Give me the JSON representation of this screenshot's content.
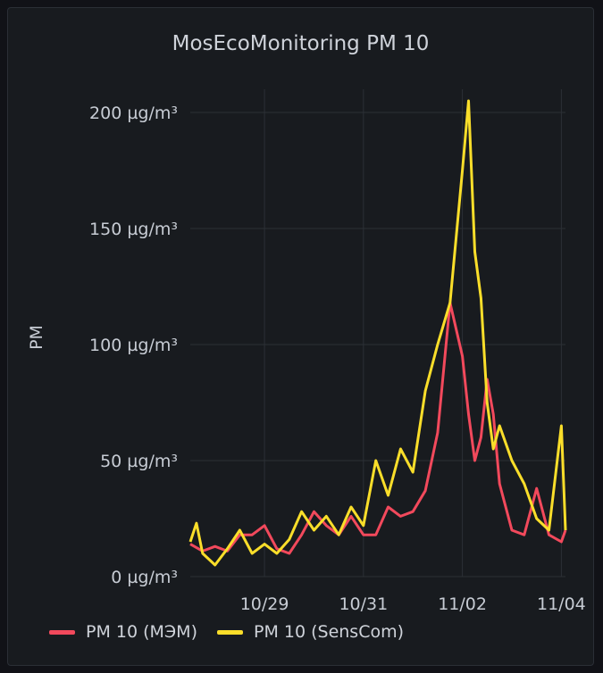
{
  "panel": {
    "title": "MosEcoMonitoring PM 10"
  },
  "legend": {
    "items": [
      {
        "label": "PM 10 (МЭМ)",
        "color": "#f2495c"
      },
      {
        "label": "PM 10 (SensCom)",
        "color": "#fade2a"
      }
    ]
  },
  "chart_data": {
    "type": "line",
    "title": "MosEcoMonitoring PM 10",
    "xlabel": "",
    "ylabel": "PM",
    "x_ticks": [
      "10/29",
      "10/31",
      "11/02",
      "11/04"
    ],
    "y_ticks": [
      "0 µg/m³",
      "50 µg/m³",
      "100 µg/m³",
      "150 µg/m³",
      "200 µg/m³"
    ],
    "ylim": [
      0,
      210
    ],
    "xlim": [
      "10/27 12:00",
      "11/04 02:00"
    ],
    "grid": true,
    "legend_position": "bottom-left",
    "series": [
      {
        "name": "PM 10 (МЭМ)",
        "color": "#f2495c",
        "x": [
          "10/27 12:00",
          "10/27 18:00",
          "10/28 00:00",
          "10/28 06:00",
          "10/28 12:00",
          "10/28 18:00",
          "10/29 00:00",
          "10/29 06:00",
          "10/29 12:00",
          "10/29 18:00",
          "10/30 00:00",
          "10/30 06:00",
          "10/30 12:00",
          "10/30 18:00",
          "10/31 00:00",
          "10/31 06:00",
          "10/31 12:00",
          "10/31 18:00",
          "11/01 00:00",
          "11/01 06:00",
          "11/01 12:00",
          "11/01 18:00",
          "11/02 00:00",
          "11/02 03:00",
          "11/02 06:00",
          "11/02 09:00",
          "11/02 12:00",
          "11/02 15:00",
          "11/02 18:00",
          "11/03 00:00",
          "11/03 06:00",
          "11/03 12:00",
          "11/03 18:00",
          "11/04 00:00",
          "11/04 02:00"
        ],
        "values": [
          14,
          11,
          13,
          11,
          18,
          18,
          22,
          12,
          10,
          18,
          28,
          22,
          18,
          26,
          18,
          18,
          30,
          26,
          28,
          37,
          62,
          118,
          95,
          70,
          50,
          60,
          85,
          70,
          40,
          20,
          18,
          38,
          18,
          15,
          20
        ]
      },
      {
        "name": "PM 10 (SensCom)",
        "color": "#fade2a",
        "x": [
          "10/27 12:00",
          "10/27 15:00",
          "10/27 18:00",
          "10/28 00:00",
          "10/28 06:00",
          "10/28 12:00",
          "10/28 18:00",
          "10/29 00:00",
          "10/29 06:00",
          "10/29 12:00",
          "10/29 18:00",
          "10/30 00:00",
          "10/30 06:00",
          "10/30 12:00",
          "10/30 18:00",
          "10/31 00:00",
          "10/31 06:00",
          "10/31 12:00",
          "10/31 18:00",
          "11/01 00:00",
          "11/01 06:00",
          "11/01 12:00",
          "11/01 18:00",
          "11/02 00:00",
          "11/02 03:00",
          "11/02 06:00",
          "11/02 09:00",
          "11/02 12:00",
          "11/02 15:00",
          "11/02 18:00",
          "11/03 00:00",
          "11/03 06:00",
          "11/03 12:00",
          "11/03 18:00",
          "11/04 00:00",
          "11/04 02:00"
        ],
        "values": [
          15,
          23,
          10,
          5,
          12,
          20,
          10,
          14,
          10,
          16,
          28,
          20,
          26,
          18,
          30,
          22,
          50,
          35,
          55,
          45,
          80,
          100,
          118,
          175,
          205,
          140,
          120,
          75,
          55,
          65,
          50,
          40,
          25,
          20,
          65,
          20
        ]
      }
    ]
  }
}
